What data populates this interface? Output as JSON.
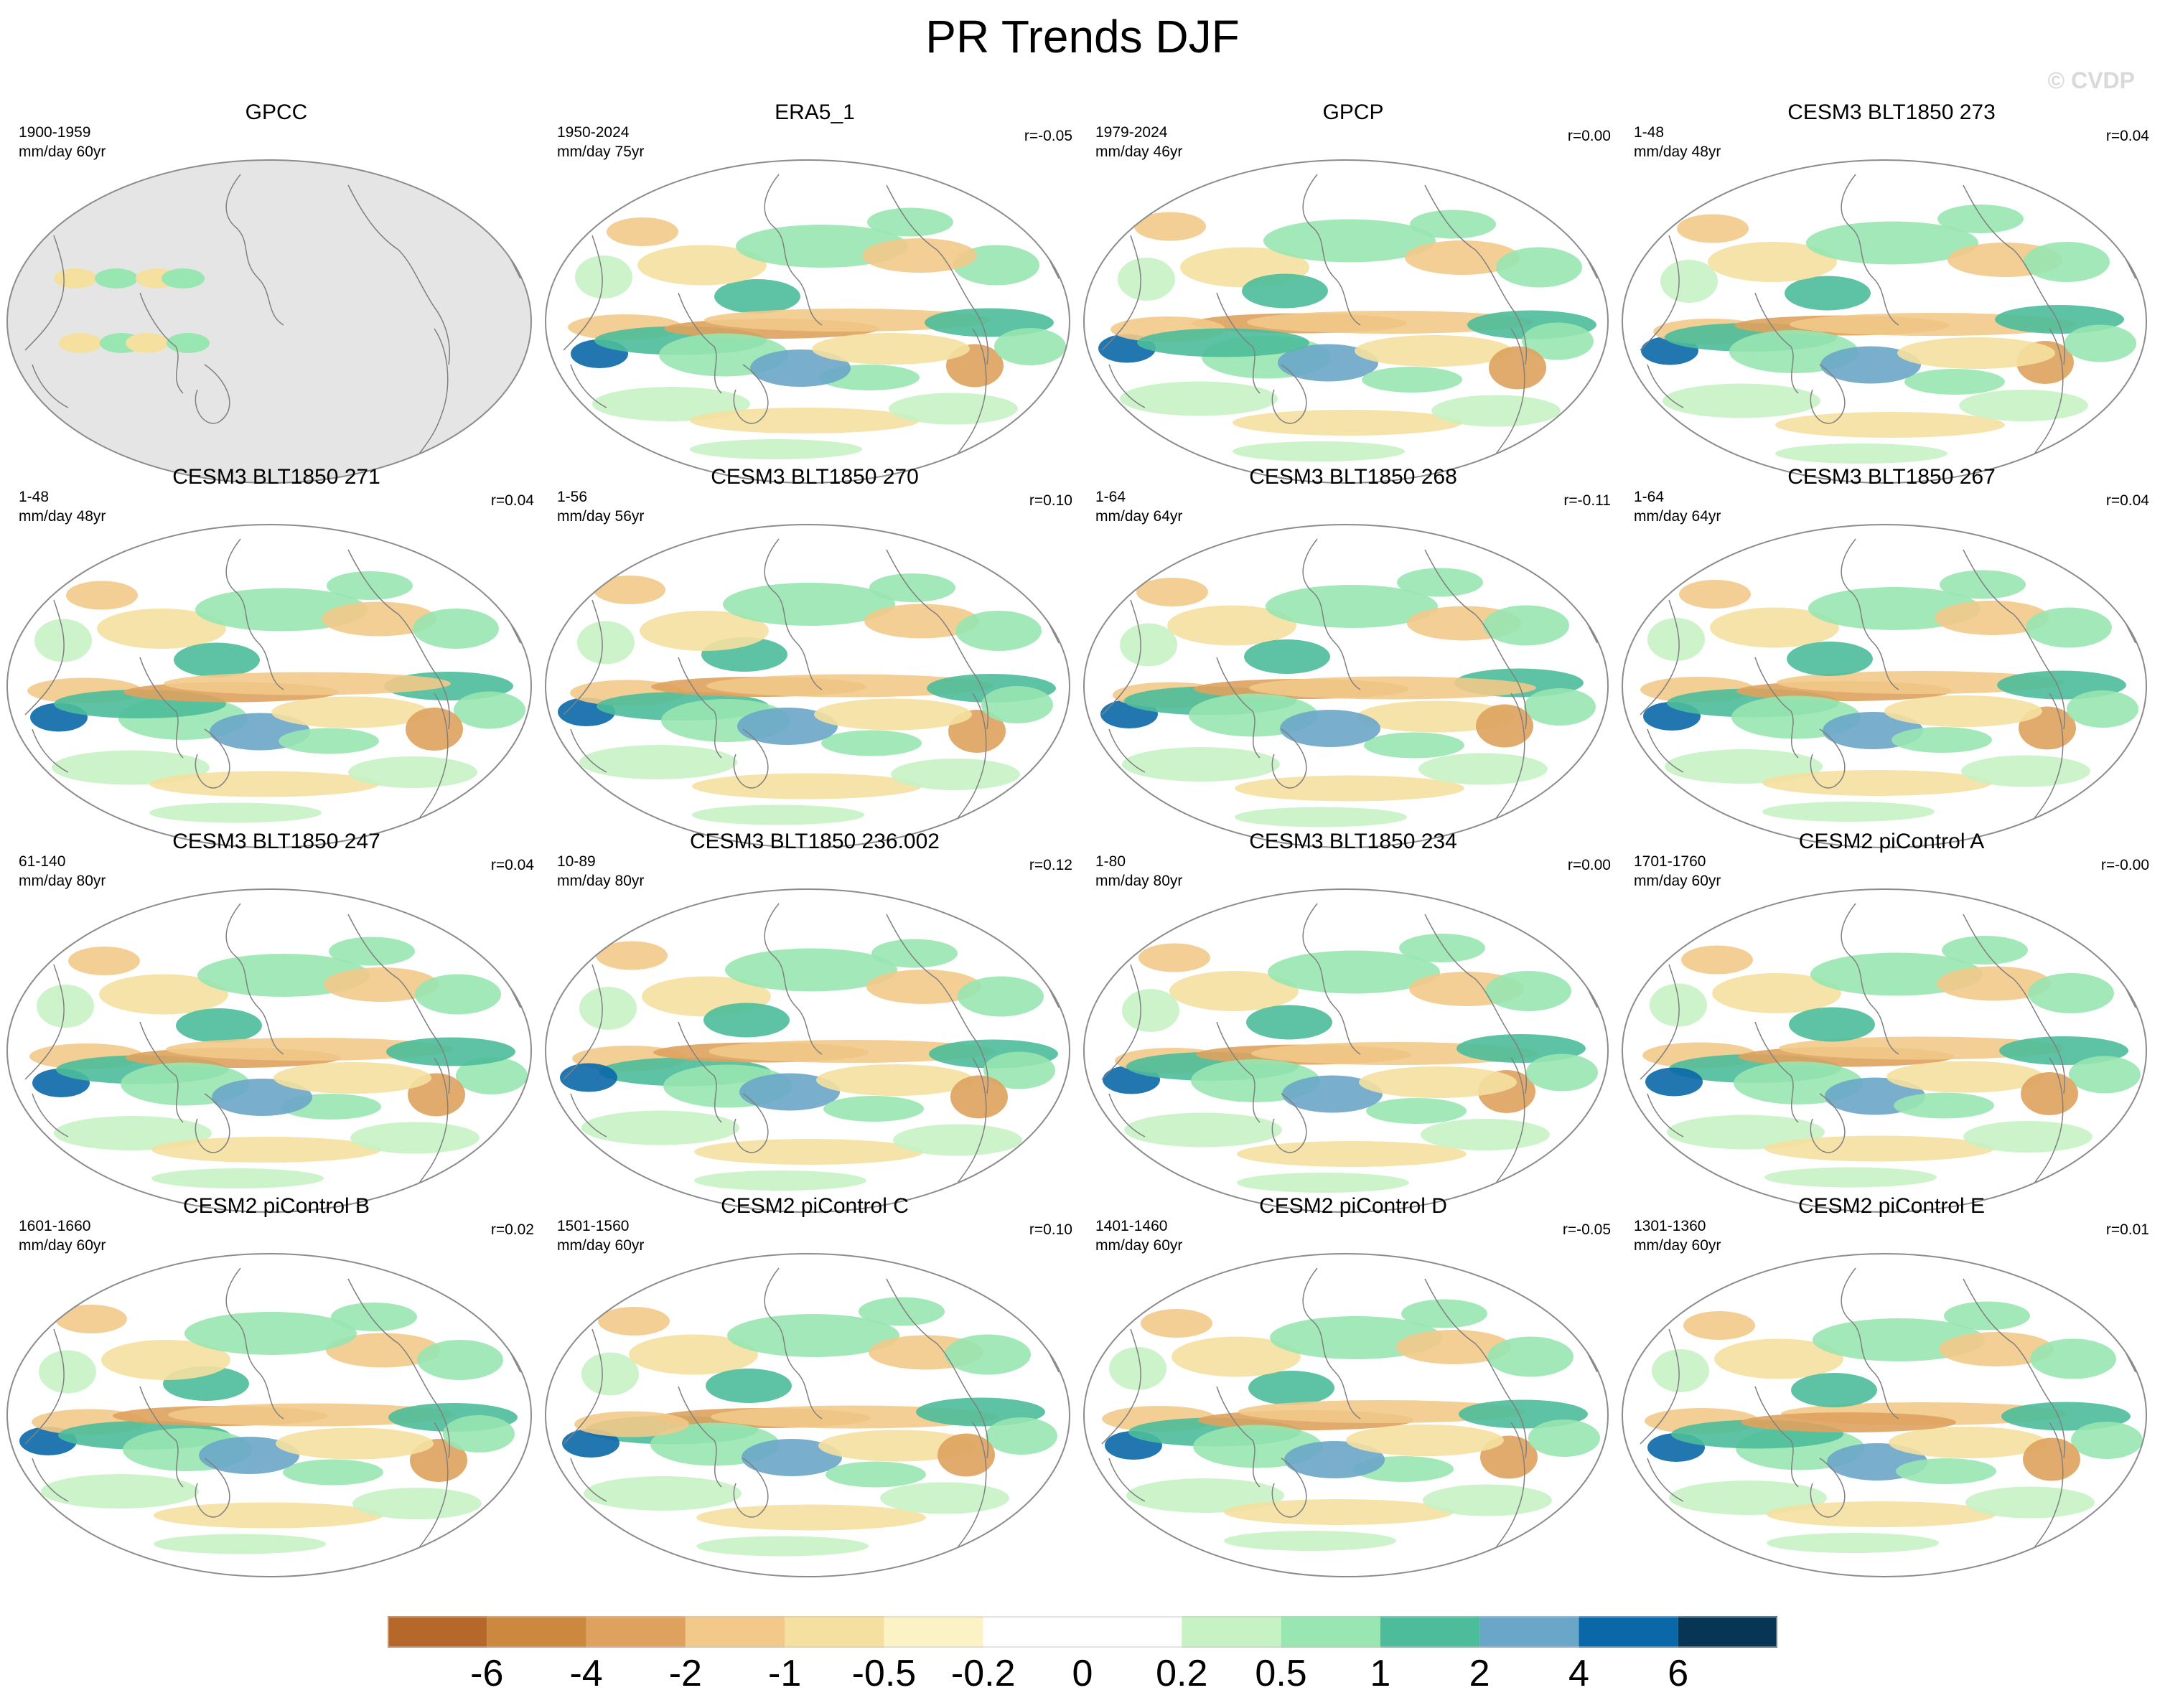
{
  "title": "PR Trends DJF",
  "watermark": "© CVDP",
  "colors": {
    "land": "#e5e5e5",
    "coast": "#808080",
    "outline": "#8c8c8c",
    "levels": [
      "#b5682a",
      "#cd8840",
      "#dfa25e",
      "#f2c98a",
      "#f5e0a0",
      "#fbf3c6",
      "#ffffff",
      "#ffffff",
      "#c6f2c4",
      "#98e6b1",
      "#4dbc9a",
      "#6aa6c8",
      "#0a68a8",
      "#073654"
    ]
  },
  "colorbar": {
    "labels": [
      "-6",
      "-4",
      "-2",
      "-1",
      "-0.5",
      "-0.2",
      "0",
      "0.2",
      "0.5",
      "1",
      "2",
      "4",
      "6"
    ]
  },
  "panels": [
    {
      "title": "GPCC",
      "years": "1900-1959",
      "units": "mm/day 60yr",
      "r": "",
      "masked": true
    },
    {
      "title": "ERA5_1",
      "years": "1950-2024",
      "units": "mm/day 75yr",
      "r": "r=-0.05",
      "masked": false
    },
    {
      "title": "GPCP",
      "years": "1979-2024",
      "units": "mm/day 46yr",
      "r": "r=0.00",
      "masked": false
    },
    {
      "title": "CESM3 BLT1850 273",
      "years": "1-48",
      "units": "mm/day 48yr",
      "r": "r=0.04",
      "masked": false
    },
    {
      "title": "CESM3 BLT1850 271",
      "years": "1-48",
      "units": "mm/day 48yr",
      "r": "r=0.04",
      "masked": false
    },
    {
      "title": "CESM3 BLT1850 270",
      "years": "1-56",
      "units": "mm/day 56yr",
      "r": "r=0.10",
      "masked": false
    },
    {
      "title": "CESM3 BLT1850 268",
      "years": "1-64",
      "units": "mm/day 64yr",
      "r": "r=-0.11",
      "masked": false
    },
    {
      "title": "CESM3 BLT1850 267",
      "years": "1-64",
      "units": "mm/day 64yr",
      "r": "r=0.04",
      "masked": false
    },
    {
      "title": "CESM3 BLT1850 247",
      "years": "61-140",
      "units": "mm/day 80yr",
      "r": "r=0.04",
      "masked": false
    },
    {
      "title": "CESM3 BLT1850 236.002",
      "years": "10-89",
      "units": "mm/day 80yr",
      "r": "r=0.12",
      "masked": false
    },
    {
      "title": "CESM3 BLT1850 234",
      "years": "1-80",
      "units": "mm/day 80yr",
      "r": "r=0.00",
      "masked": false
    },
    {
      "title": "CESM2 piControl A",
      "years": "1701-1760",
      "units": "mm/day 60yr",
      "r": "r=-0.00",
      "masked": false
    },
    {
      "title": "CESM2 piControl B",
      "years": "1601-1660",
      "units": "mm/day 60yr",
      "r": "r=0.02",
      "masked": false
    },
    {
      "title": "CESM2 piControl C",
      "years": "1501-1560",
      "units": "mm/day 60yr",
      "r": "r=0.10",
      "masked": false
    },
    {
      "title": "CESM2 piControl D",
      "years": "1401-1460",
      "units": "mm/day 60yr",
      "r": "r=-0.05",
      "masked": false
    },
    {
      "title": "CESM2 piControl E",
      "years": "1301-1360",
      "units": "mm/day 60yr",
      "r": "r=0.01",
      "masked": false
    }
  ]
}
